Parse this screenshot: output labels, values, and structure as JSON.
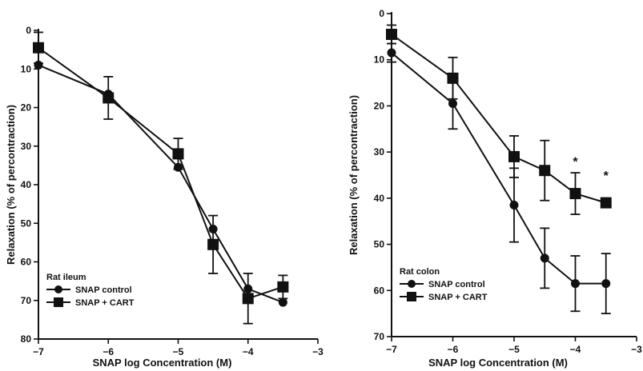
{
  "chart_data": [
    {
      "type": "line",
      "title": "",
      "xlabel": "SNAP log Concentration (M)",
      "ylabel": "Relaxation (% of percontraction)",
      "xlim": [
        -7,
        -3
      ],
      "ylim": [
        0,
        80
      ],
      "y_inverted": true,
      "xticks": [
        -7,
        -6,
        -5,
        -4,
        -3
      ],
      "yticks": [
        0,
        10,
        20,
        30,
        40,
        50,
        60,
        70,
        80
      ],
      "legend_title": "Rat ileum",
      "legend_position": "bottom-left",
      "series": [
        {
          "name": "SNAP control",
          "marker": "circle",
          "x": [
            -7,
            -6,
            -5,
            -4.5,
            -4,
            -3.5
          ],
          "y": [
            9,
            16.5,
            35.5,
            51.5,
            67,
            70.5
          ],
          "err": [
            0,
            0,
            0,
            0,
            0,
            0
          ]
        },
        {
          "name": "SNAP + CART",
          "marker": "square",
          "x": [
            -7,
            -6,
            -5,
            -4.5,
            -4,
            -3.5
          ],
          "y": [
            4.5,
            17.5,
            32,
            55.5,
            69.5,
            66.5
          ],
          "err": [
            4,
            5.5,
            4,
            7.5,
            6.5,
            3
          ]
        }
      ],
      "control_err_extra": {
        "x": -7,
        "lower": 13.5
      },
      "annotations": []
    },
    {
      "type": "line",
      "title": "",
      "xlabel": "SNAP log Concentration (M)",
      "ylabel": "Relaxation (% of percontraction)",
      "xlim": [
        -7,
        -3
      ],
      "ylim": [
        0,
        70
      ],
      "y_inverted": true,
      "xticks": [
        -7,
        -6,
        -5,
        -4,
        -3
      ],
      "yticks": [
        0,
        10,
        20,
        30,
        40,
        50,
        60,
        70
      ],
      "legend_title": "Rat colon",
      "legend_position": "bottom-left",
      "series": [
        {
          "name": "SNAP control",
          "marker": "circle",
          "x": [
            -7,
            -6,
            -5,
            -4.5,
            -4,
            -3.5
          ],
          "y": [
            8.5,
            19.5,
            41.5,
            53,
            58.5,
            58.5
          ],
          "err": [
            2,
            5.5,
            8,
            6.5,
            6,
            6.5
          ]
        },
        {
          "name": "SNAP + CART",
          "marker": "square",
          "x": [
            -7,
            -6,
            -5,
            -4.5,
            -4,
            -3.5
          ],
          "y": [
            4.5,
            14,
            31,
            34,
            39,
            41
          ],
          "err": [
            2,
            4.5,
            4.5,
            6.5,
            4.5,
            1
          ]
        }
      ],
      "annotations": [
        {
          "text": "*",
          "x": -4,
          "y": 33
        },
        {
          "text": "*",
          "x": -3.5,
          "y": 36
        }
      ]
    }
  ]
}
